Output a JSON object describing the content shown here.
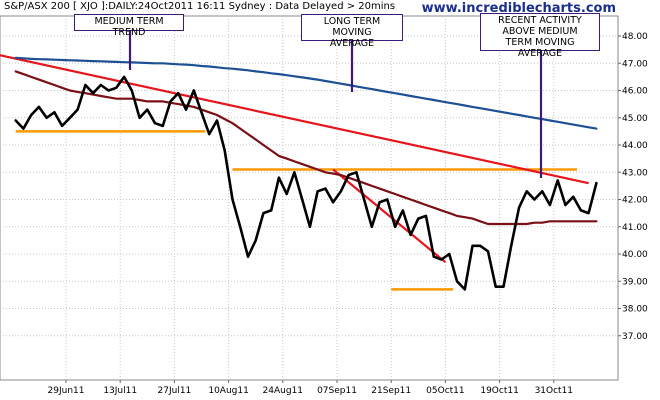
{
  "header": {
    "title": "S&P/ASX 200 [ XJO ]:DAILY:24Oct2011 16:11 Sydney : Data Delayed > 20mins",
    "site": "www.incrediblecharts.com"
  },
  "annotations": {
    "medium_trend": "MEDIUM TERM TREND",
    "long_ma": "LONG TERM MOVING\nAVERAGE",
    "recent": "RECENT ACTIVITY\nABOVE MEDIUM\nTERM MOVING AVERAGE"
  },
  "colors": {
    "price": "#000000",
    "medium_ma": "#7a0f14",
    "long_ma": "#1c4f94",
    "trend_line": "#e8141c",
    "support_resistance": "#ff9900",
    "annotation_border": "#3d1a7a",
    "grid": "#c8c8c8",
    "site_text": "#1a2f8c"
  },
  "chart_data": {
    "type": "line",
    "title": "S&P/ASX 200 [ XJO ]:DAILY:24Oct2011 16:11 Sydney : Data Delayed > 20mins",
    "xlabel": "",
    "ylabel": "",
    "ylim": [
      36,
      49
    ],
    "y_ticks": [
      "37.00",
      "38.00",
      "39.00",
      "40.00",
      "41.00",
      "42.00",
      "43.00",
      "44.00",
      "45.00",
      "46.00",
      "47.00",
      "48.00"
    ],
    "x_ticks": [
      "29Jun11",
      "13Jul11",
      "27Jul11",
      "10Aug11",
      "24Aug11",
      "07Sep11",
      "21Sep11",
      "05Oct11",
      "19Oct11",
      "31Oct11"
    ],
    "grid": true,
    "x": [
      -13,
      -11,
      -9,
      -7,
      -5,
      -3,
      -1,
      1,
      3,
      5,
      7,
      9,
      11,
      13,
      15,
      17,
      19,
      21,
      23,
      25,
      27,
      29,
      31,
      33,
      35,
      37,
      39,
      41,
      43,
      45,
      47,
      49,
      51,
      53,
      55,
      57,
      59,
      61,
      63,
      65,
      67,
      69,
      71,
      73,
      75,
      77,
      79,
      81,
      83,
      85,
      87,
      89,
      91,
      93,
      95,
      97,
      99,
      101,
      103,
      105,
      107,
      109,
      111,
      113,
      115,
      117,
      119,
      121,
      123,
      125,
      127,
      129,
      131,
      133,
      135,
      137,
      139
    ],
    "series": [
      {
        "values": [
          44.9,
          44.6,
          45.1,
          45.4,
          45.0,
          45.2,
          44.7,
          45.0,
          45.3,
          46.2,
          45.9,
          46.2,
          46.0,
          46.1,
          46.5,
          46.0,
          45.0,
          45.3,
          44.8,
          44.7,
          45.6,
          45.9,
          45.3,
          46.0,
          45.2,
          44.4,
          44.9,
          43.8,
          42.0,
          41.0,
          39.9,
          40.5,
          41.5,
          41.6,
          42.8,
          42.2,
          43.0,
          42.0,
          41.0,
          42.3,
          42.4,
          41.9,
          42.3,
          42.9,
          43.0,
          42.0,
          41.0,
          41.9,
          42.0,
          41.0,
          41.6,
          40.7,
          41.3,
          41.4,
          39.9,
          39.8,
          40.0,
          39.0,
          38.7,
          40.3,
          40.3,
          40.1,
          38.8,
          38.8,
          40.3,
          41.7,
          42.3,
          42.0,
          42.3,
          41.8,
          42.7,
          41.8,
          42.1,
          41.6,
          41.5,
          42.6,
          null
        ],
        "style": "price"
      },
      {
        "values": [
          46.7,
          46.6,
          46.5,
          46.4,
          46.3,
          46.2,
          46.1,
          46.0,
          45.95,
          45.9,
          45.85,
          45.8,
          45.75,
          45.7,
          45.7,
          45.7,
          45.65,
          45.6,
          45.6,
          45.6,
          45.55,
          45.5,
          45.45,
          45.4,
          45.3,
          45.2,
          45.1,
          44.95,
          44.8,
          44.6,
          44.4,
          44.2,
          44.0,
          43.8,
          43.6,
          43.5,
          43.4,
          43.3,
          43.2,
          43.1,
          43.0,
          42.95,
          42.9,
          42.8,
          42.7,
          42.6,
          42.5,
          42.4,
          42.3,
          42.2,
          42.1,
          42.0,
          41.9,
          41.8,
          41.7,
          41.6,
          41.5,
          41.4,
          41.35,
          41.3,
          41.2,
          41.1,
          41.1,
          41.1,
          41.1,
          41.1,
          41.1,
          41.15,
          41.15,
          41.2,
          41.2,
          41.2,
          41.2,
          41.2,
          41.2,
          41.2,
          null
        ],
        "style": "medium_ma"
      },
      {
        "values": [
          47.2,
          47.18,
          47.16,
          47.15,
          47.14,
          47.13,
          47.12,
          47.11,
          47.1,
          47.09,
          47.08,
          47.07,
          47.06,
          47.05,
          47.04,
          47.03,
          47.02,
          47.01,
          47.0,
          47.0,
          46.98,
          46.96,
          46.95,
          46.93,
          46.9,
          46.88,
          46.85,
          46.82,
          46.8,
          46.77,
          46.74,
          46.7,
          46.67,
          46.63,
          46.6,
          46.56,
          46.52,
          46.48,
          46.44,
          46.4,
          46.35,
          46.3,
          46.25,
          46.2,
          46.15,
          46.1,
          46.05,
          46.0,
          45.95,
          45.9,
          45.85,
          45.8,
          45.75,
          45.7,
          45.65,
          45.6,
          45.55,
          45.5,
          45.45,
          45.4,
          45.35,
          45.3,
          45.25,
          45.2,
          45.15,
          45.1,
          45.05,
          45.0,
          44.95,
          44.9,
          44.85,
          44.8,
          44.75,
          44.7,
          44.65,
          44.6,
          null
        ],
        "style": "long_ma"
      }
    ],
    "overlays": {
      "trend_lines": [
        {
          "from": [
            -27,
            47.6
          ],
          "to": [
            135,
            42.6
          ]
        },
        {
          "from": [
            69,
            43.1
          ],
          "to": [
            98,
            39.7
          ]
        }
      ],
      "horizontal_lines": [
        {
          "from": [
            -13,
            44.5
          ],
          "to": [
            36,
            44.5
          ]
        },
        {
          "from": [
            43,
            43.1
          ],
          "to": [
            132,
            43.1
          ]
        },
        {
          "from": [
            84,
            38.7
          ],
          "to": [
            100,
            38.7
          ]
        }
      ]
    }
  }
}
